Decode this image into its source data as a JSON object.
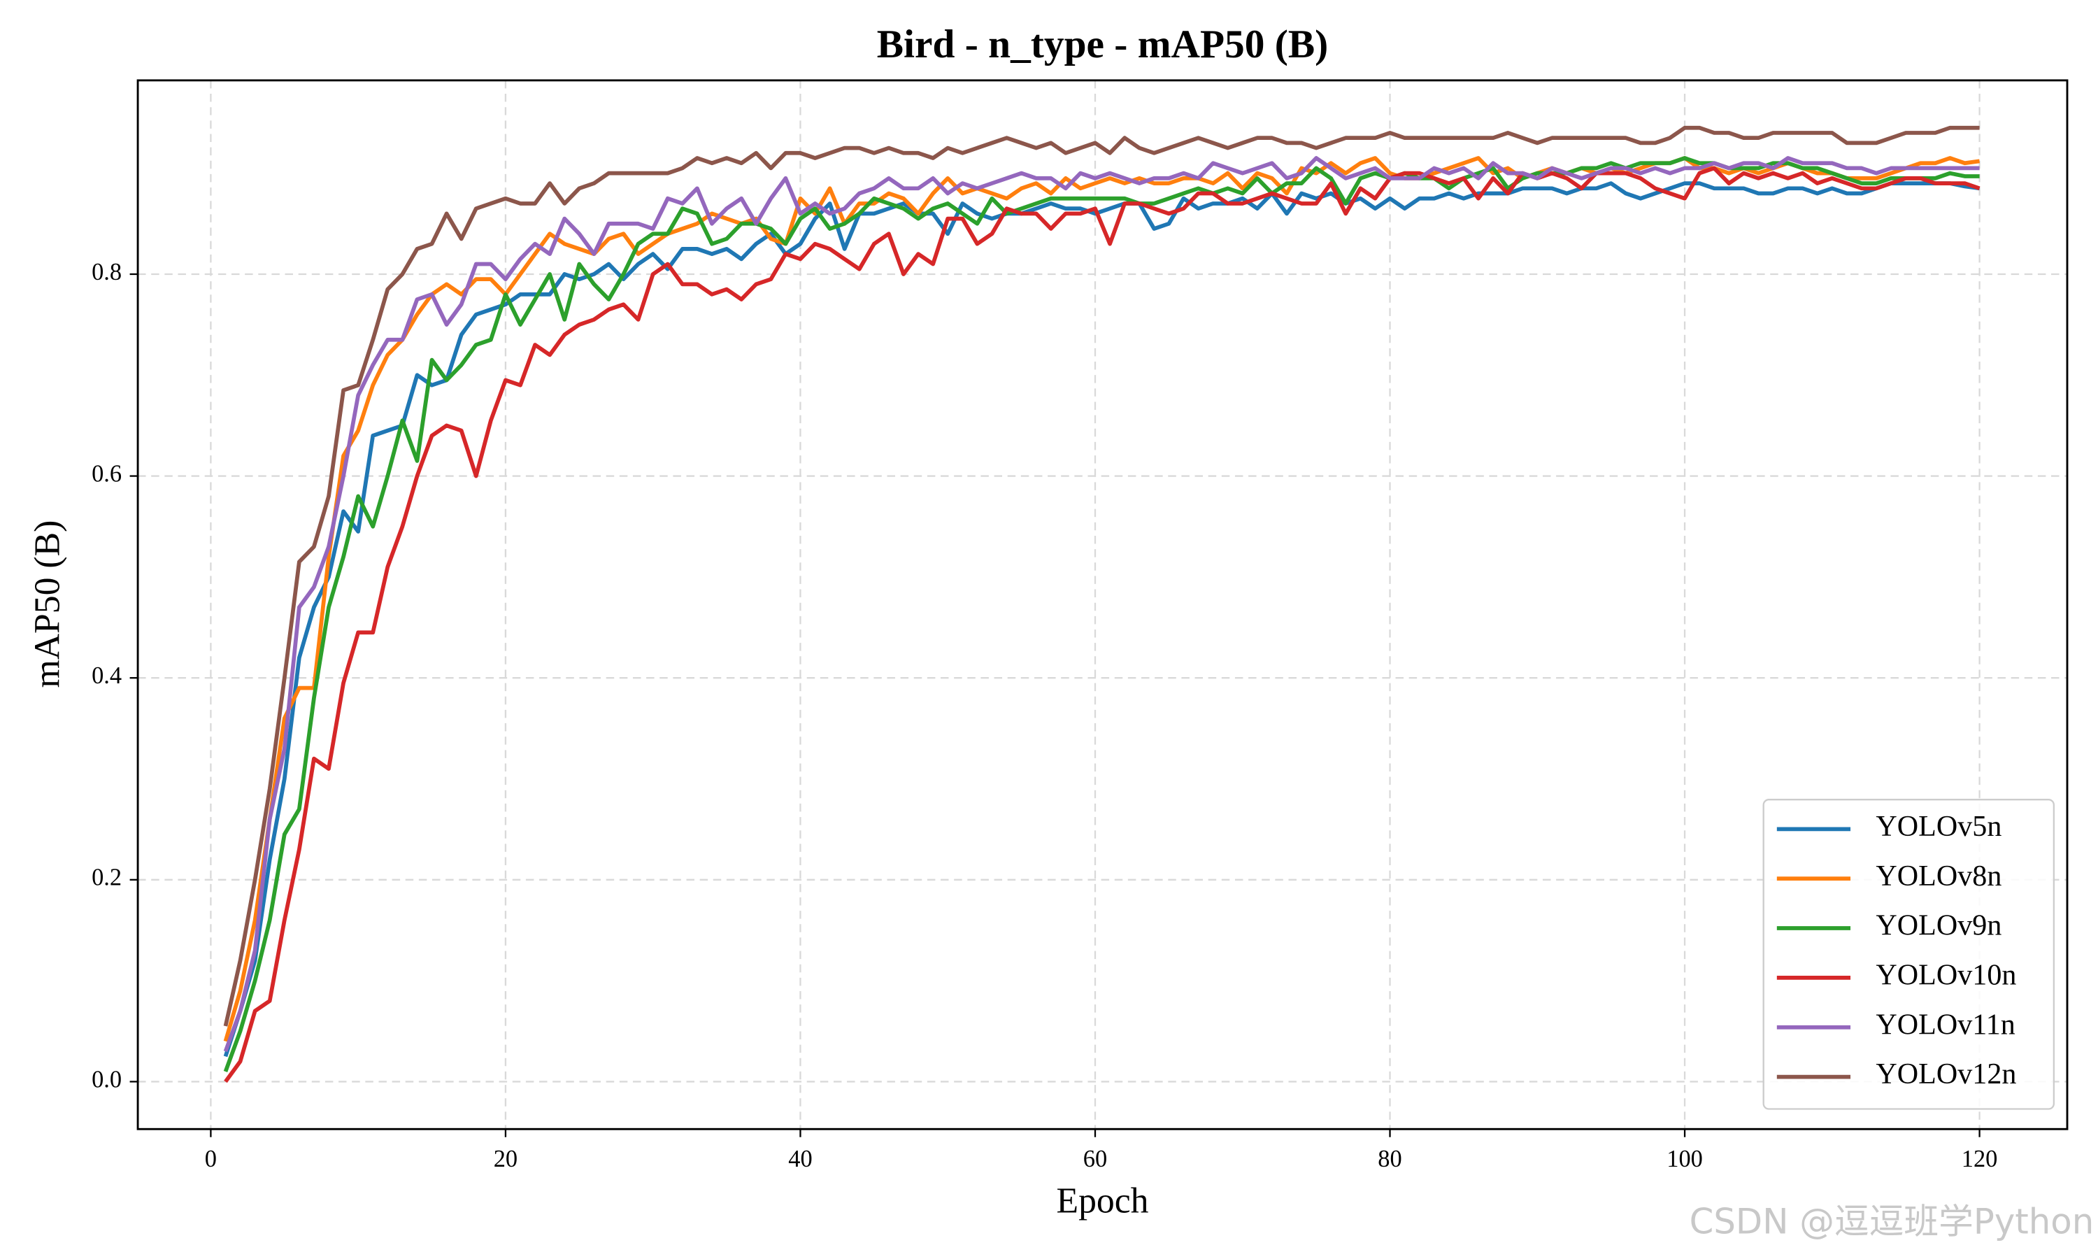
{
  "chart_data": {
    "type": "line",
    "title": "Bird - n_type - mAP50 (B)",
    "xlabel": "Epoch",
    "ylabel": "mAP50 (B)",
    "watermark": "CSDN @逗逗班学Python",
    "legend": "lower right",
    "grid": true,
    "xlim": [
      -4.95,
      125.95
    ],
    "xticks": [
      0,
      20,
      40,
      60,
      80,
      100,
      120
    ],
    "ylim": [
      -0.047,
      0.992
    ],
    "yticks": [
      {
        "value": 0,
        "label": "0.0"
      },
      0.2,
      0.4,
      0.6,
      0.8
    ],
    "x": [
      1,
      2,
      3,
      4,
      5,
      6,
      7,
      8,
      9,
      10,
      11,
      12,
      13,
      14,
      15,
      16,
      17,
      18,
      19,
      20,
      21,
      22,
      23,
      24,
      25,
      26,
      27,
      28,
      29,
      30,
      31,
      32,
      33,
      34,
      35,
      36,
      37,
      38,
      39,
      40,
      41,
      42,
      43,
      44,
      45,
      46,
      47,
      48,
      49,
      50,
      51,
      52,
      53,
      54,
      55,
      56,
      57,
      58,
      59,
      60,
      61,
      62,
      63,
      64,
      65,
      66,
      67,
      68,
      69,
      70,
      71,
      72,
      73,
      74,
      75,
      76,
      77,
      78,
      79,
      80,
      81,
      82,
      83,
      84,
      85,
      86,
      87,
      88,
      89,
      90,
      91,
      92,
      93,
      94,
      95,
      96,
      97,
      98,
      99,
      100,
      101,
      102,
      103,
      104,
      105,
      106,
      107,
      108,
      109,
      110,
      111,
      112,
      113,
      114,
      115,
      116,
      117,
      118,
      119,
      120
    ],
    "series": [
      {
        "name": "YOLOv5n",
        "color": "#1f77b4",
        "values": [
          0.025,
          0.07,
          0.12,
          0.22,
          0.3,
          0.42,
          0.47,
          0.5,
          0.565,
          0.545,
          0.64,
          0.645,
          0.65,
          0.7,
          0.69,
          0.695,
          0.74,
          0.76,
          0.765,
          0.77,
          0.78,
          0.78,
          0.78,
          0.8,
          0.795,
          0.8,
          0.81,
          0.795,
          0.81,
          0.82,
          0.805,
          0.825,
          0.825,
          0.82,
          0.825,
          0.815,
          0.83,
          0.84,
          0.82,
          0.83,
          0.855,
          0.87,
          0.825,
          0.86,
          0.86,
          0.865,
          0.87,
          0.86,
          0.86,
          0.84,
          0.87,
          0.86,
          0.855,
          0.86,
          0.86,
          0.865,
          0.87,
          0.865,
          0.865,
          0.86,
          0.865,
          0.87,
          0.87,
          0.845,
          0.85,
          0.875,
          0.865,
          0.87,
          0.87,
          0.875,
          0.865,
          0.88,
          0.86,
          0.88,
          0.875,
          0.88,
          0.87,
          0.875,
          0.865,
          0.875,
          0.865,
          0.875,
          0.875,
          0.88,
          0.875,
          0.88,
          0.88,
          0.88,
          0.885,
          0.885,
          0.885,
          0.88,
          0.885,
          0.885,
          0.89,
          0.88,
          0.875,
          0.88,
          0.885,
          0.89,
          0.89,
          0.885,
          0.885,
          0.885,
          0.88,
          0.88,
          0.885,
          0.885,
          0.88,
          0.885,
          0.88,
          0.88,
          0.885,
          0.89,
          0.89,
          0.89,
          0.89,
          0.89,
          0.887,
          0.885
        ]
      },
      {
        "name": "YOLOv8n",
        "color": "#ff7f0e",
        "values": [
          0.04,
          0.09,
          0.16,
          0.26,
          0.36,
          0.39,
          0.39,
          0.52,
          0.62,
          0.645,
          0.69,
          0.72,
          0.735,
          0.76,
          0.78,
          0.79,
          0.78,
          0.795,
          0.795,
          0.78,
          0.8,
          0.82,
          0.84,
          0.83,
          0.825,
          0.82,
          0.835,
          0.84,
          0.82,
          0.83,
          0.84,
          0.845,
          0.85,
          0.86,
          0.855,
          0.85,
          0.855,
          0.835,
          0.83,
          0.875,
          0.86,
          0.885,
          0.85,
          0.87,
          0.87,
          0.88,
          0.875,
          0.86,
          0.88,
          0.895,
          0.88,
          0.885,
          0.88,
          0.875,
          0.885,
          0.89,
          0.88,
          0.895,
          0.885,
          0.89,
          0.895,
          0.89,
          0.895,
          0.89,
          0.89,
          0.895,
          0.895,
          0.89,
          0.9,
          0.885,
          0.9,
          0.895,
          0.88,
          0.905,
          0.9,
          0.91,
          0.9,
          0.91,
          0.915,
          0.9,
          0.895,
          0.895,
          0.9,
          0.905,
          0.91,
          0.915,
          0.9,
          0.905,
          0.895,
          0.9,
          0.905,
          0.9,
          0.905,
          0.9,
          0.905,
          0.9,
          0.905,
          0.91,
          0.91,
          0.915,
          0.905,
          0.905,
          0.9,
          0.905,
          0.9,
          0.905,
          0.91,
          0.905,
          0.9,
          0.9,
          0.895,
          0.895,
          0.895,
          0.9,
          0.905,
          0.91,
          0.91,
          0.915,
          0.91,
          0.912
        ]
      },
      {
        "name": "YOLOv9n",
        "color": "#2ca02c",
        "values": [
          0.01,
          0.05,
          0.1,
          0.16,
          0.245,
          0.27,
          0.38,
          0.47,
          0.52,
          0.58,
          0.55,
          0.6,
          0.655,
          0.615,
          0.715,
          0.695,
          0.71,
          0.73,
          0.735,
          0.78,
          0.75,
          0.775,
          0.8,
          0.755,
          0.81,
          0.79,
          0.775,
          0.8,
          0.83,
          0.84,
          0.84,
          0.865,
          0.86,
          0.83,
          0.835,
          0.85,
          0.85,
          0.845,
          0.83,
          0.855,
          0.865,
          0.845,
          0.85,
          0.86,
          0.875,
          0.87,
          0.865,
          0.855,
          0.865,
          0.87,
          0.86,
          0.85,
          0.875,
          0.86,
          0.865,
          0.87,
          0.875,
          0.875,
          0.875,
          0.875,
          0.875,
          0.875,
          0.87,
          0.87,
          0.875,
          0.88,
          0.885,
          0.88,
          0.885,
          0.88,
          0.895,
          0.88,
          0.89,
          0.89,
          0.905,
          0.895,
          0.87,
          0.895,
          0.9,
          0.895,
          0.9,
          0.895,
          0.895,
          0.885,
          0.895,
          0.9,
          0.905,
          0.885,
          0.895,
          0.9,
          0.9,
          0.9,
          0.905,
          0.905,
          0.91,
          0.905,
          0.91,
          0.91,
          0.91,
          0.915,
          0.91,
          0.91,
          0.905,
          0.905,
          0.905,
          0.91,
          0.91,
          0.905,
          0.905,
          0.9,
          0.895,
          0.89,
          0.89,
          0.895,
          0.895,
          0.895,
          0.895,
          0.9,
          0.897,
          0.897
        ]
      },
      {
        "name": "YOLOv10n",
        "color": "#d62728",
        "values": [
          0.0,
          0.02,
          0.07,
          0.08,
          0.16,
          0.23,
          0.32,
          0.31,
          0.395,
          0.445,
          0.445,
          0.51,
          0.55,
          0.6,
          0.64,
          0.65,
          0.645,
          0.6,
          0.655,
          0.695,
          0.69,
          0.73,
          0.72,
          0.74,
          0.75,
          0.755,
          0.765,
          0.77,
          0.755,
          0.8,
          0.81,
          0.79,
          0.79,
          0.78,
          0.785,
          0.775,
          0.79,
          0.795,
          0.82,
          0.815,
          0.83,
          0.825,
          0.815,
          0.805,
          0.83,
          0.84,
          0.8,
          0.82,
          0.81,
          0.855,
          0.855,
          0.83,
          0.84,
          0.865,
          0.86,
          0.86,
          0.845,
          0.86,
          0.86,
          0.865,
          0.83,
          0.87,
          0.87,
          0.865,
          0.86,
          0.865,
          0.88,
          0.88,
          0.87,
          0.87,
          0.875,
          0.88,
          0.875,
          0.87,
          0.87,
          0.89,
          0.86,
          0.885,
          0.875,
          0.895,
          0.9,
          0.9,
          0.895,
          0.89,
          0.895,
          0.875,
          0.895,
          0.88,
          0.9,
          0.895,
          0.9,
          0.895,
          0.885,
          0.9,
          0.9,
          0.9,
          0.895,
          0.885,
          0.88,
          0.875,
          0.9,
          0.905,
          0.89,
          0.9,
          0.895,
          0.9,
          0.895,
          0.9,
          0.89,
          0.895,
          0.89,
          0.885,
          0.885,
          0.89,
          0.895,
          0.895,
          0.89,
          0.89,
          0.89,
          0.885
        ]
      },
      {
        "name": "YOLOv11n",
        "color": "#9467bd",
        "values": [
          0.03,
          0.07,
          0.13,
          0.26,
          0.33,
          0.47,
          0.49,
          0.53,
          0.6,
          0.68,
          0.71,
          0.735,
          0.735,
          0.775,
          0.78,
          0.75,
          0.77,
          0.81,
          0.81,
          0.795,
          0.815,
          0.83,
          0.82,
          0.855,
          0.84,
          0.82,
          0.85,
          0.85,
          0.85,
          0.845,
          0.875,
          0.87,
          0.885,
          0.85,
          0.865,
          0.875,
          0.85,
          0.875,
          0.895,
          0.86,
          0.87,
          0.86,
          0.865,
          0.88,
          0.885,
          0.895,
          0.885,
          0.885,
          0.895,
          0.88,
          0.89,
          0.885,
          0.89,
          0.895,
          0.9,
          0.895,
          0.895,
          0.885,
          0.9,
          0.895,
          0.9,
          0.895,
          0.89,
          0.895,
          0.895,
          0.9,
          0.895,
          0.91,
          0.905,
          0.9,
          0.905,
          0.91,
          0.895,
          0.9,
          0.915,
          0.905,
          0.895,
          0.9,
          0.905,
          0.895,
          0.895,
          0.895,
          0.905,
          0.9,
          0.905,
          0.895,
          0.91,
          0.9,
          0.9,
          0.895,
          0.905,
          0.9,
          0.895,
          0.9,
          0.905,
          0.905,
          0.9,
          0.905,
          0.9,
          0.905,
          0.905,
          0.91,
          0.905,
          0.91,
          0.91,
          0.905,
          0.915,
          0.91,
          0.91,
          0.91,
          0.905,
          0.905,
          0.9,
          0.905,
          0.905,
          0.905,
          0.905,
          0.905,
          0.905,
          0.905
        ]
      },
      {
        "name": "YOLOv12n",
        "color": "#8c564b",
        "values": [
          0.055,
          0.12,
          0.2,
          0.29,
          0.4,
          0.515,
          0.53,
          0.58,
          0.685,
          0.69,
          0.735,
          0.785,
          0.8,
          0.825,
          0.83,
          0.86,
          0.835,
          0.865,
          0.87,
          0.875,
          0.87,
          0.87,
          0.89,
          0.87,
          0.885,
          0.89,
          0.9,
          0.9,
          0.9,
          0.9,
          0.9,
          0.905,
          0.915,
          0.91,
          0.915,
          0.91,
          0.92,
          0.905,
          0.92,
          0.92,
          0.915,
          0.92,
          0.925,
          0.925,
          0.92,
          0.925,
          0.92,
          0.92,
          0.915,
          0.925,
          0.92,
          0.925,
          0.93,
          0.935,
          0.93,
          0.925,
          0.93,
          0.92,
          0.925,
          0.93,
          0.92,
          0.935,
          0.925,
          0.92,
          0.925,
          0.93,
          0.935,
          0.93,
          0.925,
          0.93,
          0.935,
          0.935,
          0.93,
          0.93,
          0.925,
          0.93,
          0.935,
          0.935,
          0.935,
          0.94,
          0.935,
          0.935,
          0.935,
          0.935,
          0.935,
          0.935,
          0.935,
          0.94,
          0.935,
          0.93,
          0.935,
          0.935,
          0.935,
          0.935,
          0.935,
          0.935,
          0.93,
          0.93,
          0.935,
          0.945,
          0.945,
          0.94,
          0.94,
          0.935,
          0.935,
          0.94,
          0.94,
          0.94,
          0.94,
          0.94,
          0.93,
          0.93,
          0.93,
          0.935,
          0.94,
          0.94,
          0.94,
          0.945,
          0.945,
          0.945
        ]
      }
    ]
  }
}
